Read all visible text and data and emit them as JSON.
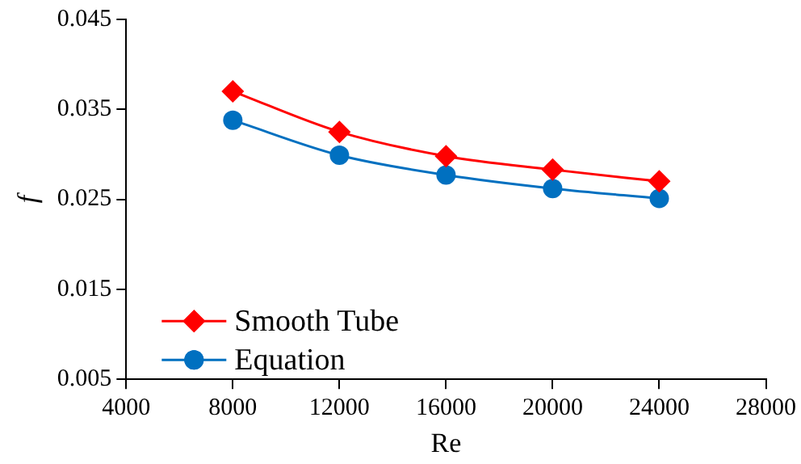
{
  "chart_data": {
    "type": "line",
    "xlabel": "Re",
    "ylabel": "f",
    "x": [
      8000,
      12000,
      16000,
      20000,
      24000
    ],
    "series": [
      {
        "name": "Smooth Tube",
        "color": "#ff0000",
        "marker": "diamond",
        "values": [
          0.037,
          0.0325,
          0.0298,
          0.0283,
          0.027
        ]
      },
      {
        "name": "Equation",
        "color": "#0070c0",
        "marker": "circle",
        "values": [
          0.0338,
          0.0299,
          0.0277,
          0.0262,
          0.0251
        ]
      }
    ],
    "xlim": [
      4000,
      28000
    ],
    "xticks": [
      4000,
      8000,
      12000,
      16000,
      20000,
      24000,
      28000
    ],
    "ylim": [
      0.005,
      0.045
    ],
    "yticks": [
      0.005,
      0.015,
      0.025,
      0.035,
      0.045
    ],
    "grid": false,
    "legend": "bottom left"
  }
}
